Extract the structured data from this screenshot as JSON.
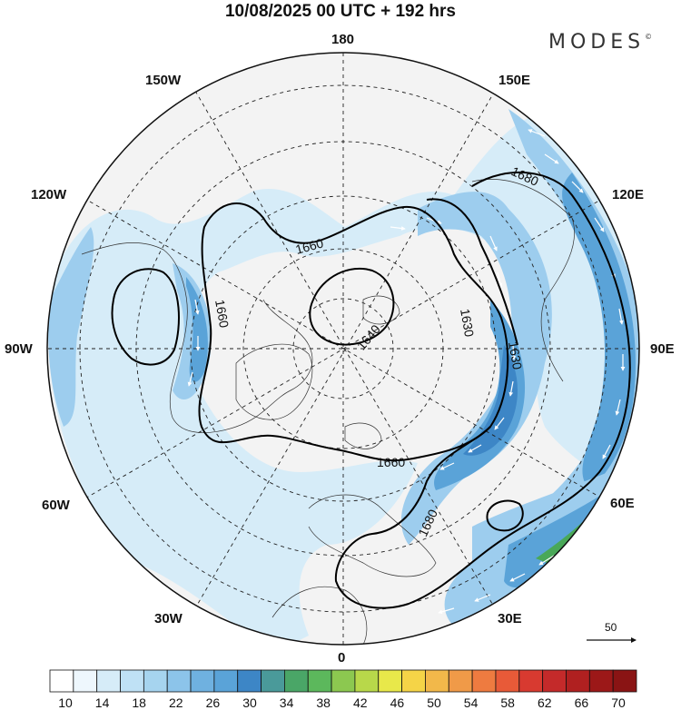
{
  "header": {
    "title": "10/08/2025  00 UTC  + 192 hrs",
    "brand": "MODES",
    "brand_mark": "©"
  },
  "map": {
    "projection": "polar-stereographic",
    "longitude_labels": {
      "top": "180",
      "bottom": "0",
      "left": "90W",
      "right": "90E",
      "upper_left": "150W",
      "upper_right": "150E",
      "mid_upper_left": "120W",
      "mid_upper_right": "120E",
      "lower_left": "60W",
      "lower_right": "60E",
      "bottom_left": "30W",
      "bottom_right": "30E"
    },
    "contour_labels": [
      "1680",
      "1660",
      "1660",
      "1640",
      "1630",
      "1630",
      "1660",
      "1680"
    ],
    "reference_vector": "50",
    "colors": {
      "land_fill": "#f2f2f2",
      "light_blue": "#d6ecf8",
      "mid_blue": "#9dcdee",
      "strong_blue": "#5aa3d8",
      "deep_blue": "#3d86c6",
      "green": "#49a858"
    }
  },
  "colorbar": {
    "tick_labels": [
      "10",
      "14",
      "18",
      "22",
      "26",
      "30",
      "34",
      "38",
      "42",
      "46",
      "50",
      "54",
      "58",
      "62",
      "66",
      "70"
    ],
    "colors": [
      "#ffffff",
      "#eef7fd",
      "#d6ecf8",
      "#bfe1f5",
      "#a6d4ef",
      "#8cc4ea",
      "#6fb1e0",
      "#5aa3d8",
      "#3d86c6",
      "#4a9a9a",
      "#4aa667",
      "#5cb85c",
      "#8cc850",
      "#b8d84a",
      "#e8e84a",
      "#f5d447",
      "#f2b84a",
      "#f09a48",
      "#ee7b40",
      "#e85a38",
      "#d83a30",
      "#c42a2a",
      "#b02020",
      "#9c1818",
      "#8a1414"
    ]
  }
}
